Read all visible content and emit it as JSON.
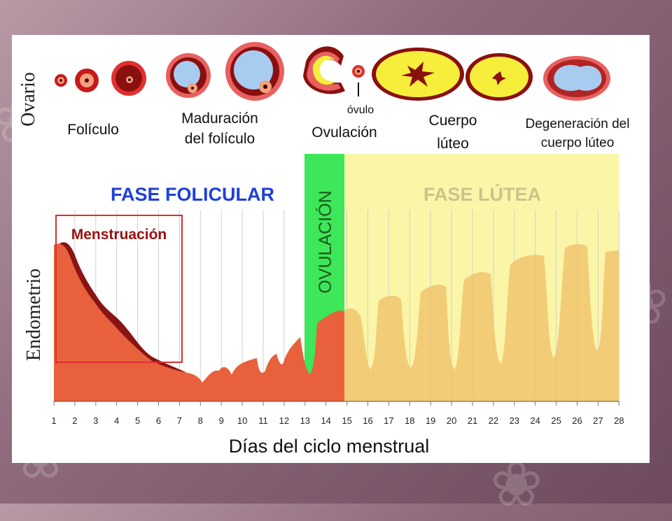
{
  "ovary_label": "Ovario",
  "endometrium_label": "Endometrio",
  "stages": {
    "follicle": "Folículo",
    "maturation_line1": "Maduración",
    "maturation_line2": "del folículo",
    "ovulation": "Ovulación",
    "ovum": "óvulo",
    "corpus_line1": "Cuerpo",
    "corpus_line2": "lúteo",
    "degeneration_line1": "Degeneración del",
    "degeneration_line2": "cuerpo lúteo"
  },
  "phases": {
    "follicular": "FASE FOLICULAR",
    "ovulation": "OVULACIÓN",
    "luteal": "FASE LÚTEA",
    "menstruation": "Menstruación"
  },
  "x_axis": {
    "title": "Días del ciclo menstrual",
    "ticks": [
      "1",
      "2",
      "3",
      "4",
      "5",
      "6",
      "7",
      "8",
      "9",
      "10",
      "11",
      "12",
      "13",
      "14",
      "15",
      "16",
      "17",
      "18",
      "19",
      "20",
      "21",
      "22",
      "23",
      "24",
      "25",
      "26",
      "27",
      "28"
    ]
  },
  "colors": {
    "follicular_text": "#1f3fd8",
    "luteal_text": "#c9c48a",
    "ovulation_band": "#3ee65a",
    "luteal_band": "#fbf5a8",
    "endometrium": "#e8613c",
    "endometrium_dark": "#8a1414",
    "endometrium_luteal": "#f0c46e",
    "menstruation_box": "#d93030",
    "menstruation_text": "#9a1010"
  }
}
